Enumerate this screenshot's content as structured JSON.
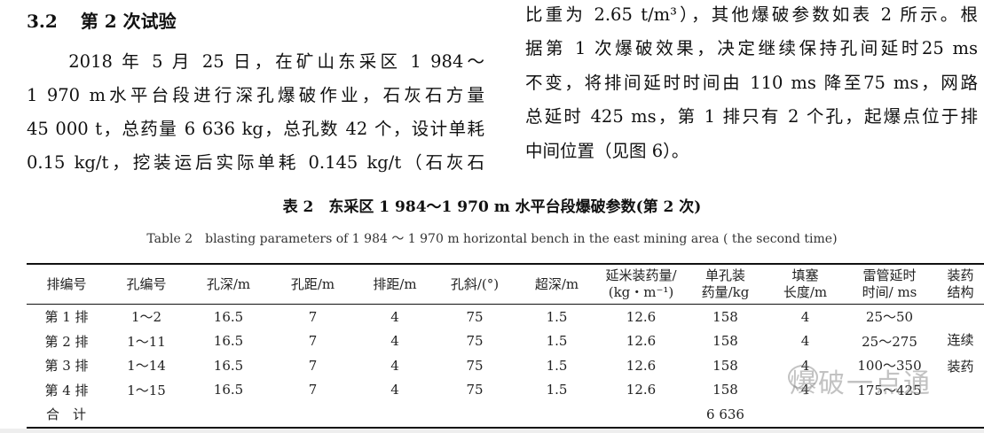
{
  "section": {
    "number": "3.2",
    "title": "第 2 次试验"
  },
  "left_lines": [
    "　　2018 年 5 月 25 日，在矿山东采区 1 984～",
    "1 970 m水平台段进行深孔爆破作业，石灰石方量",
    "45 000 t，总药量 6 636 kg，总孔数 42 个，设计单耗",
    "0.15 kg/t，挖装运后实际单耗 0.145 kg/t（石灰石"
  ],
  "right_lines": [
    "比重为 2.65 t/m³），其他爆破参数如表 2 所示。根",
    "据第 1 次爆破效果，决定继续保持孔间延时25 ms",
    "不变，将排间延时时间由 110 ms 降至75 ms，网路",
    "总延时 425 ms，第 1 排只有 2 个孔，起爆点位于排",
    "中间位置（见图 6）。"
  ],
  "table": {
    "caption_cn": "表 2　东采区 1 984～1 970 m 水平台段爆破参数(第 2 次)",
    "caption_en": "Table 2　blasting parameters of 1 984 ～ 1 970 m horizontal bench in the east mining area ( the second time)",
    "headers": [
      [
        "排编号"
      ],
      [
        "孔编号"
      ],
      [
        "孔深/m"
      ],
      [
        "孔距/m"
      ],
      [
        "排距/m"
      ],
      [
        "孔斜/(°)"
      ],
      [
        "超深/m"
      ],
      [
        "延米装药量/",
        "(kg・m⁻¹)"
      ],
      [
        "单孔装",
        "药量/kg"
      ],
      [
        "填塞",
        "长度/m"
      ],
      [
        "雷管延时",
        "时间/ ms"
      ],
      [
        "装药",
        "结构"
      ]
    ],
    "rows": [
      [
        "第 1 排",
        "1～2",
        "16.5",
        "7",
        "4",
        "75",
        "1.5",
        "12.6",
        "158",
        "4",
        "25～50"
      ],
      [
        "第 2 排",
        "1～11",
        "16.5",
        "7",
        "4",
        "75",
        "1.5",
        "12.6",
        "158",
        "4",
        "25～275"
      ],
      [
        "第 3 排",
        "1～14",
        "16.5",
        "7",
        "4",
        "75",
        "1.5",
        "12.6",
        "158",
        "4",
        "100～350"
      ],
      [
        "第 4 排",
        "1～15",
        "16.5",
        "7",
        "4",
        "75",
        "1.5",
        "12.6",
        "158",
        "4",
        "175～425"
      ]
    ],
    "charge_structure": [
      "连续",
      "装药"
    ],
    "total": {
      "label": "合　计",
      "value": "6 636"
    }
  },
  "watermark": "爆破一点通"
}
